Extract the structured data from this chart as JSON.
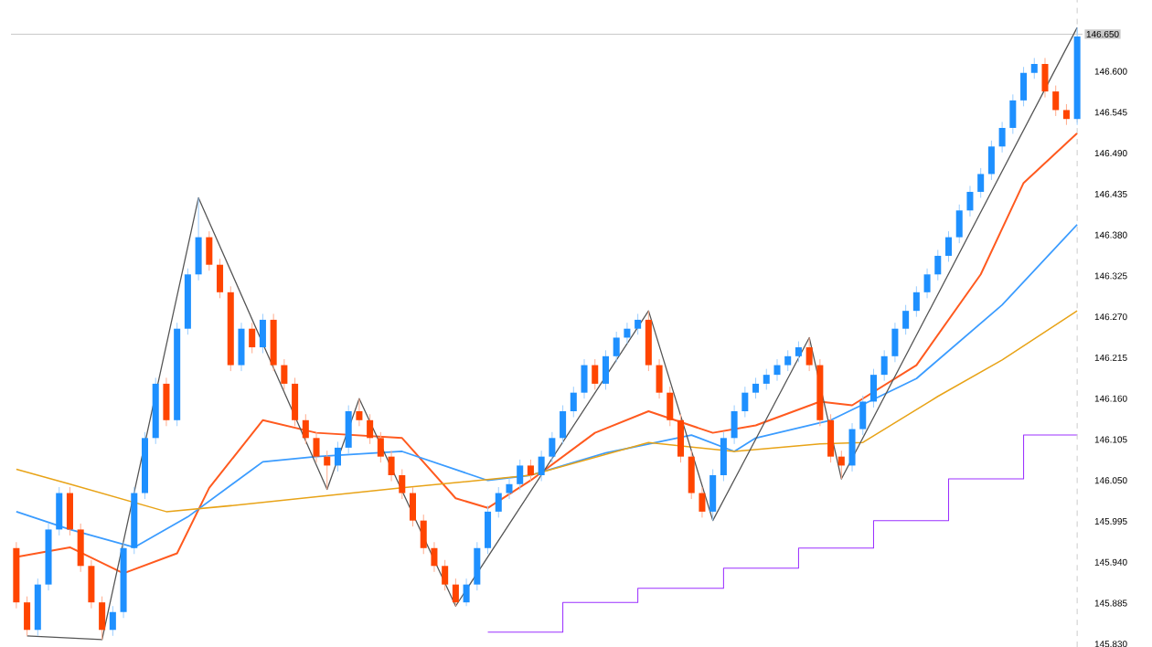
{
  "chart_data": {
    "type": "candlestick",
    "categories": [
      null,
      null,
      null,
      null,
      null,
      null,
      null,
      null,
      null,
      null,
      null,
      null,
      null,
      null,
      null,
      null,
      null,
      null,
      null,
      null,
      null,
      null,
      null,
      null,
      null,
      null,
      null,
      null,
      null,
      null,
      null,
      null,
      null,
      null,
      null,
      null,
      null,
      null,
      null,
      null,
      null,
      null,
      null,
      null,
      null,
      null,
      null,
      null,
      null,
      null,
      null,
      null,
      null,
      null,
      null,
      null,
      null,
      null,
      null,
      null,
      null,
      null,
      null,
      null,
      null,
      null,
      null,
      null,
      null,
      null,
      null,
      null,
      null,
      null,
      null,
      null,
      null,
      null,
      null,
      null,
      null,
      null,
      null,
      null,
      null,
      null,
      null,
      null,
      null,
      null,
      null,
      null,
      null,
      null,
      null,
      null,
      null,
      null,
      null,
      null
    ],
    "ohlc": [
      [
        145.959,
        145.967,
        145.878,
        145.886
      ],
      [
        145.886,
        145.894,
        145.841,
        145.849
      ],
      [
        145.849,
        145.918,
        145.841,
        145.91
      ],
      [
        145.91,
        145.992,
        145.902,
        145.984
      ],
      [
        145.984,
        146.041,
        145.976,
        146.033
      ],
      [
        146.033,
        146.041,
        145.976,
        145.984
      ],
      [
        145.984,
        145.992,
        145.927,
        145.935
      ],
      [
        145.935,
        145.943,
        145.878,
        145.886
      ],
      [
        145.886,
        145.894,
        145.836,
        145.849
      ],
      [
        145.849,
        145.881,
        145.841,
        145.873
      ],
      [
        145.873,
        145.967,
        145.865,
        145.959
      ],
      [
        145.959,
        146.041,
        145.951,
        146.033
      ],
      [
        146.033,
        146.115,
        146.025,
        146.107
      ],
      [
        146.107,
        146.188,
        146.099,
        146.18
      ],
      [
        146.18,
        146.188,
        146.123,
        146.131
      ],
      [
        146.131,
        146.262,
        146.123,
        146.254
      ],
      [
        146.254,
        146.335,
        146.246,
        146.327
      ],
      [
        146.327,
        146.43,
        146.319,
        146.377
      ],
      [
        146.377,
        146.385,
        146.332,
        146.34
      ],
      [
        146.34,
        146.348,
        146.295,
        146.303
      ],
      [
        146.303,
        146.311,
        146.197,
        146.205
      ],
      [
        146.205,
        146.262,
        146.197,
        146.254
      ],
      [
        146.254,
        146.262,
        146.221,
        146.229
      ],
      [
        146.229,
        146.274,
        146.221,
        146.266
      ],
      [
        146.266,
        146.274,
        146.197,
        146.205
      ],
      [
        146.205,
        146.213,
        146.172,
        146.18
      ],
      [
        146.18,
        146.188,
        146.123,
        146.131
      ],
      [
        146.131,
        146.139,
        146.099,
        146.107
      ],
      [
        146.107,
        146.115,
        146.074,
        146.082
      ],
      [
        146.082,
        146.09,
        146.038,
        146.07
      ],
      [
        146.07,
        146.102,
        146.062,
        146.094
      ],
      [
        146.094,
        146.151,
        146.086,
        146.143
      ],
      [
        146.143,
        146.16,
        146.123,
        146.131
      ],
      [
        146.131,
        146.139,
        146.099,
        146.107
      ],
      [
        146.107,
        146.115,
        146.074,
        146.082
      ],
      [
        146.082,
        146.09,
        146.049,
        146.057
      ],
      [
        146.057,
        146.065,
        146.025,
        146.033
      ],
      [
        146.033,
        146.041,
        145.988,
        145.996
      ],
      [
        145.996,
        146.004,
        145.951,
        145.959
      ],
      [
        145.959,
        145.967,
        145.927,
        145.935
      ],
      [
        145.935,
        145.943,
        145.902,
        145.91
      ],
      [
        145.91,
        145.918,
        145.881,
        145.886
      ],
      [
        145.886,
        145.918,
        145.881,
        145.91
      ],
      [
        145.91,
        145.967,
        145.902,
        145.959
      ],
      [
        145.959,
        146.016,
        145.951,
        146.008
      ],
      [
        146.008,
        146.041,
        146.0,
        146.033
      ],
      [
        146.033,
        146.053,
        146.025,
        146.045
      ],
      [
        146.045,
        146.078,
        146.037,
        146.07
      ],
      [
        146.07,
        146.078,
        146.049,
        146.057
      ],
      [
        146.057,
        146.09,
        146.049,
        146.082
      ],
      [
        146.082,
        146.115,
        146.074,
        146.107
      ],
      [
        146.107,
        146.151,
        146.099,
        146.143
      ],
      [
        146.143,
        146.176,
        146.135,
        146.168
      ],
      [
        146.168,
        146.213,
        146.16,
        146.205
      ],
      [
        146.205,
        146.213,
        146.172,
        146.18
      ],
      [
        146.18,
        146.225,
        146.172,
        146.217
      ],
      [
        146.217,
        146.25,
        146.209,
        146.242
      ],
      [
        146.242,
        146.262,
        146.234,
        146.254
      ],
      [
        146.254,
        146.274,
        146.246,
        146.266
      ],
      [
        146.266,
        146.278,
        146.197,
        146.205
      ],
      [
        146.205,
        146.213,
        146.16,
        146.168
      ],
      [
        146.168,
        146.176,
        146.123,
        146.131
      ],
      [
        146.131,
        146.139,
        146.074,
        146.082
      ],
      [
        146.082,
        146.09,
        146.025,
        146.033
      ],
      [
        146.033,
        146.041,
        146.0,
        146.008
      ],
      [
        146.008,
        146.065,
        145.996,
        146.057
      ],
      [
        146.057,
        146.115,
        146.049,
        146.107
      ],
      [
        146.107,
        146.151,
        146.099,
        146.143
      ],
      [
        146.143,
        146.176,
        146.135,
        146.168
      ],
      [
        146.168,
        146.188,
        146.16,
        146.18
      ],
      [
        146.18,
        146.2,
        146.172,
        146.192
      ],
      [
        146.192,
        146.213,
        146.184,
        146.205
      ],
      [
        146.205,
        146.225,
        146.197,
        146.217
      ],
      [
        146.217,
        146.237,
        146.209,
        146.229
      ],
      [
        146.229,
        146.242,
        146.197,
        146.205
      ],
      [
        146.205,
        146.213,
        146.123,
        146.131
      ],
      [
        146.131,
        146.139,
        146.074,
        146.082
      ],
      [
        146.082,
        146.09,
        146.052,
        146.07
      ],
      [
        146.07,
        146.127,
        146.062,
        146.119
      ],
      [
        146.119,
        146.164,
        146.111,
        146.156
      ],
      [
        146.156,
        146.2,
        146.148,
        146.192
      ],
      [
        146.192,
        146.225,
        146.184,
        146.217
      ],
      [
        146.217,
        146.262,
        146.209,
        146.254
      ],
      [
        146.254,
        146.286,
        146.246,
        146.278
      ],
      [
        146.278,
        146.311,
        146.27,
        146.303
      ],
      [
        146.303,
        146.335,
        146.295,
        146.327
      ],
      [
        146.327,
        146.36,
        146.319,
        146.352
      ],
      [
        146.352,
        146.385,
        146.344,
        146.377
      ],
      [
        146.377,
        146.421,
        146.369,
        146.413
      ],
      [
        146.413,
        146.446,
        146.405,
        146.438
      ],
      [
        146.438,
        146.47,
        146.43,
        146.462
      ],
      [
        146.462,
        146.507,
        146.454,
        146.499
      ],
      [
        146.499,
        146.532,
        146.491,
        146.524
      ],
      [
        146.524,
        146.569,
        146.516,
        146.561
      ],
      [
        146.561,
        146.606,
        146.553,
        146.598
      ],
      [
        146.598,
        146.618,
        146.59,
        146.61
      ],
      [
        146.61,
        146.618,
        146.565,
        146.573
      ],
      [
        146.573,
        146.581,
        146.54,
        146.548
      ],
      [
        146.548,
        146.556,
        146.528,
        146.536
      ],
      [
        146.536,
        146.659,
        146.528,
        146.647
      ]
    ],
    "colors": [
      "#ff4500",
      "#ff4500",
      "#1e90ff",
      "#1e90ff",
      "#1e90ff",
      "#ff4500",
      "#ff4500",
      "#ff4500",
      "#ff4500",
      "#1e90ff",
      "#1e90ff",
      "#1e90ff",
      "#1e90ff",
      "#1e90ff",
      "#ff4500",
      "#1e90ff",
      "#1e90ff",
      "#1e90ff",
      "#ff4500",
      "#ff4500",
      "#ff4500",
      "#1e90ff",
      "#ff4500",
      "#1e90ff",
      "#ff4500",
      "#ff4500",
      "#ff4500",
      "#ff4500",
      "#ff4500",
      "#ff4500",
      "#1e90ff",
      "#1e90ff",
      "#ff4500",
      "#ff4500",
      "#ff4500",
      "#ff4500",
      "#ff4500",
      "#ff4500",
      "#ff4500",
      "#ff4500",
      "#ff4500",
      "#ff4500",
      "#1e90ff",
      "#1e90ff",
      "#1e90ff",
      "#1e90ff",
      "#1e90ff",
      "#1e90ff",
      "#ff4500",
      "#1e90ff",
      "#1e90ff",
      "#1e90ff",
      "#1e90ff",
      "#1e90ff",
      "#ff4500",
      "#1e90ff",
      "#1e90ff",
      "#1e90ff",
      "#1e90ff",
      "#ff4500",
      "#ff4500",
      "#ff4500",
      "#ff4500",
      "#ff4500",
      "#ff4500",
      "#1e90ff",
      "#1e90ff",
      "#1e90ff",
      "#1e90ff",
      "#1e90ff",
      "#1e90ff",
      "#1e90ff",
      "#1e90ff",
      "#1e90ff",
      "#ff4500",
      "#ff4500",
      "#ff4500",
      "#ff4500",
      "#1e90ff",
      "#1e90ff",
      "#1e90ff",
      "#1e90ff",
      "#1e90ff",
      "#1e90ff",
      "#1e90ff",
      "#1e90ff",
      "#1e90ff",
      "#1e90ff",
      "#1e90ff",
      "#1e90ff",
      "#1e90ff",
      "#1e90ff",
      "#1e90ff",
      "#1e90ff",
      "#1e90ff",
      "#1e90ff",
      "#ff4500",
      "#ff4500",
      "#ff4500",
      "#1e90ff"
    ],
    "series": [
      {
        "type": "line",
        "color": "#ff5a1f",
        "values": [
          145.947,
          null,
          null,
          null,
          null,
          145.96,
          null,
          null,
          null,
          null,
          145.925,
          null,
          null,
          null,
          null,
          145.952,
          null,
          null,
          146.04,
          null,
          null,
          null,
          null,
          146.131,
          null,
          null,
          null,
          null,
          146.114,
          null,
          null,
          null,
          null,
          null,
          null,
          null,
          146.107,
          null,
          null,
          null,
          null,
          146.026,
          null,
          null,
          146.013,
          null,
          null,
          null,
          146.05,
          null,
          null,
          null,
          null,
          null,
          146.114,
          null,
          null,
          null,
          null,
          146.143,
          null,
          null,
          null,
          null,
          null,
          146.114,
          null,
          null,
          null,
          146.124,
          null,
          null,
          null,
          null,
          null,
          146.156,
          null,
          null,
          146.151,
          null,
          null,
          null,
          null,
          null,
          146.205,
          null,
          null,
          null,
          null,
          null,
          146.327,
          null,
          null,
          null,
          146.45,
          null,
          null,
          null,
          null,
          146.517
        ]
      },
      {
        "type": "line",
        "color": "#3b9cff",
        "values": [
          146.008,
          null,
          null,
          null,
          null,
          145.984,
          null,
          null,
          null,
          null,
          null,
          145.96,
          null,
          null,
          null,
          null,
          146.001,
          null,
          null,
          null,
          null,
          null,
          null,
          146.075,
          null,
          null,
          null,
          null,
          146.082,
          null,
          null,
          null,
          null,
          null,
          null,
          null,
          146.089,
          null,
          null,
          null,
          null,
          null,
          null,
          null,
          146.05,
          null,
          null,
          null,
          146.057,
          null,
          null,
          null,
          null,
          null,
          null,
          146.087,
          null,
          null,
          null,
          null,
          null,
          null,
          null,
          146.111,
          null,
          null,
          null,
          146.089,
          null,
          146.107,
          null,
          null,
          null,
          null,
          null,
          null,
          146.131,
          null,
          null,
          null,
          null,
          null,
          null,
          null,
          146.187,
          null,
          null,
          null,
          null,
          null,
          null,
          null,
          146.286,
          null,
          null,
          null,
          null,
          null,
          null,
          146.394
        ]
      },
      {
        "type": "line",
        "color": "#e8a317",
        "values": [
          146.065,
          null,
          null,
          null,
          null,
          146.045,
          null,
          null,
          null,
          null,
          null,
          null,
          null,
          null,
          146.008,
          null,
          null,
          null,
          null,
          null,
          146.016,
          null,
          null,
          null,
          null,
          null,
          null,
          null,
          146.028,
          null,
          null,
          null,
          null,
          null,
          null,
          null,
          146.04,
          null,
          null,
          null,
          null,
          null,
          null,
          null,
          null,
          null,
          null,
          null,
          146.057,
          null,
          null,
          null,
          null,
          null,
          null,
          null,
          null,
          null,
          null,
          146.101,
          null,
          null,
          null,
          null,
          null,
          null,
          null,
          146.089,
          null,
          null,
          null,
          null,
          null,
          null,
          null,
          146.099,
          null,
          null,
          null,
          146.101,
          null,
          null,
          null,
          null,
          null,
          null,
          146.163,
          null,
          null,
          null,
          null,
          null,
          146.212,
          null,
          null,
          null,
          null,
          null,
          null,
          146.278
        ]
      },
      {
        "type": "line",
        "color": "#555555",
        "values": [
          null,
          145.841,
          null,
          null,
          null,
          null,
          null,
          null,
          145.836,
          null,
          null,
          null,
          null,
          null,
          null,
          null,
          null,
          146.43,
          null,
          null,
          null,
          null,
          null,
          null,
          null,
          null,
          null,
          null,
          null,
          146.038,
          null,
          null,
          146.16,
          null,
          null,
          null,
          null,
          null,
          null,
          null,
          null,
          145.881,
          null,
          null,
          null,
          null,
          null,
          null,
          null,
          null,
          null,
          null,
          null,
          null,
          null,
          null,
          null,
          null,
          null,
          146.278,
          null,
          null,
          null,
          null,
          null,
          145.996,
          null,
          null,
          null,
          null,
          null,
          null,
          null,
          null,
          146.242,
          null,
          null,
          146.052,
          null,
          null,
          null,
          null,
          null,
          null,
          null,
          null,
          null,
          null,
          null,
          null,
          null,
          null,
          null,
          null,
          null,
          null,
          null,
          null,
          null,
          146.659
        ]
      },
      {
        "type": "step",
        "color": "#9b30ff",
        "values": [
          null,
          null,
          null,
          null,
          null,
          null,
          null,
          null,
          null,
          null,
          null,
          null,
          null,
          null,
          null,
          null,
          null,
          null,
          null,
          null,
          null,
          null,
          null,
          null,
          null,
          null,
          null,
          null,
          null,
          null,
          null,
          null,
          null,
          null,
          null,
          null,
          null,
          null,
          null,
          null,
          null,
          null,
          null,
          null,
          145.846,
          null,
          null,
          null,
          null,
          null,
          null,
          145.886,
          null,
          null,
          null,
          null,
          null,
          null,
          145.905,
          null,
          null,
          null,
          null,
          null,
          null,
          null,
          145.932,
          null,
          null,
          null,
          null,
          null,
          null,
          145.959,
          null,
          null,
          null,
          null,
          null,
          null,
          145.996,
          null,
          null,
          null,
          null,
          null,
          null,
          146.052,
          null,
          null,
          null,
          null,
          null,
          null,
          146.111,
          null,
          null,
          null,
          null,
          146.111
        ]
      }
    ],
    "ylim": [
      145.826,
      146.696
    ],
    "yticks": [
      {
        "value": 145.83,
        "label": "145.830"
      },
      {
        "value": 145.885,
        "label": "145.885"
      },
      {
        "value": 145.94,
        "label": "145.940"
      },
      {
        "value": 145.995,
        "label": "145.995"
      },
      {
        "value": 146.05,
        "label": "146.050"
      },
      {
        "value": 146.105,
        "label": "146.105"
      },
      {
        "value": 146.16,
        "label": "146.160"
      },
      {
        "value": 146.215,
        "label": "146.215"
      },
      {
        "value": 146.27,
        "label": "146.270"
      },
      {
        "value": 146.325,
        "label": "146.325"
      },
      {
        "value": 146.38,
        "label": "146.380"
      },
      {
        "value": 146.435,
        "label": "146.435"
      },
      {
        "value": 146.49,
        "label": "146.490"
      },
      {
        "value": 146.545,
        "label": "146.545"
      },
      {
        "value": 146.6,
        "label": "146.600"
      }
    ],
    "tick_labels": "y",
    "ref_lines": [
      {
        "axis": "y",
        "value": 146.65,
        "label": "146.650",
        "color": "#c8c8c8"
      }
    ]
  }
}
